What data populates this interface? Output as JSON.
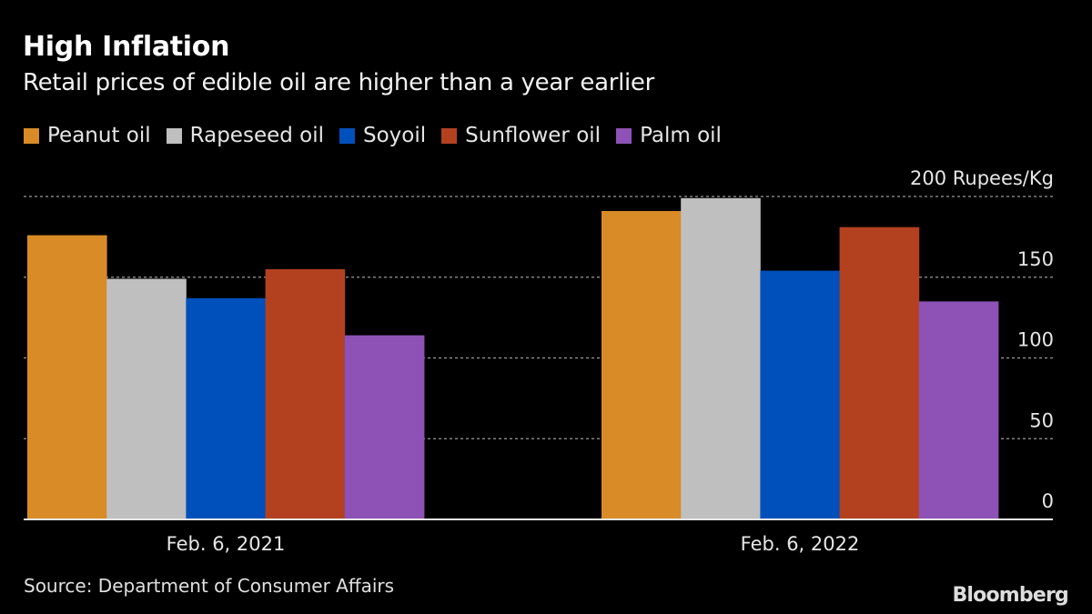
{
  "header": {
    "title": "High Inflation",
    "subtitle": "Retail prices of edible oil are higher than a year earlier"
  },
  "footer": {
    "source": "Source: Department of Consumer Affairs",
    "logo": "Bloomberg"
  },
  "chart_data": {
    "type": "bar",
    "title": "High Inflation",
    "subtitle": "Retail prices of edible oil are higher than a year earlier",
    "xlabel": "",
    "ylabel": "Rupees/Kg",
    "unit_label": "200 Rupees/Kg",
    "categories": [
      "Feb. 6, 2021",
      "Feb. 6, 2022"
    ],
    "series": [
      {
        "name": "Peanut oil",
        "color": "#D98B27",
        "values": [
          176,
          191
        ]
      },
      {
        "name": "Rapeseed oil",
        "color": "#BFBFBF",
        "values": [
          149,
          199
        ]
      },
      {
        "name": "Soyoil",
        "color": "#0050BB",
        "values": [
          137,
          154
        ]
      },
      {
        "name": "Sunflower oil",
        "color": "#B3411F",
        "values": [
          155,
          181
        ]
      },
      {
        "name": "Palm oil",
        "color": "#8E52B6",
        "values": [
          114,
          135
        ]
      }
    ],
    "ylim": [
      0,
      200
    ],
    "yticks": [
      {
        "value": 0,
        "label": "0"
      },
      {
        "value": 50,
        "label": "50"
      },
      {
        "value": 100,
        "label": "100"
      },
      {
        "value": 150,
        "label": "150"
      },
      {
        "value": 200,
        "label": "200 Rupees/Kg"
      }
    ],
    "grid": true,
    "axis_side": "right",
    "legend_position": "top-left"
  }
}
